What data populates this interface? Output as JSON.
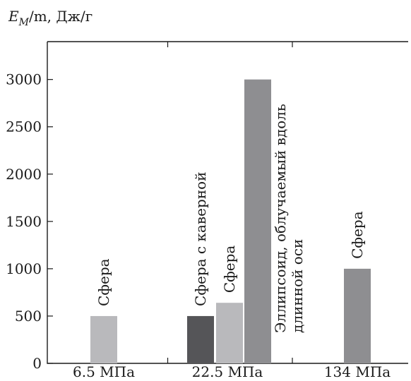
{
  "chart_data": {
    "type": "bar",
    "ylabel": "E_M/m, Дж/г",
    "ylabel_parts": {
      "e": "E",
      "sub": "M",
      "rest": "/m, Дж/г"
    },
    "ylim": [
      0,
      3400
    ],
    "yticks": [
      0,
      500,
      1000,
      1500,
      2000,
      2500,
      3000
    ],
    "ytick_labels": [
      "0",
      "500",
      "1000",
      "1500",
      "2000",
      "2500",
      "3000"
    ],
    "grid": false,
    "categories": [
      "6.5 МПа",
      "22.5 МПа",
      "134 МПа"
    ],
    "bars": [
      {
        "category": "6.5 МПа",
        "value": 500,
        "label": "Сфера",
        "label_lines": [
          "Сфера"
        ],
        "color": "#b9b9bc"
      },
      {
        "category": "22.5 МПа",
        "value": 500,
        "label": "Сфера с каверной",
        "label_lines": [
          "Сфера с каверной"
        ],
        "color": "#555558"
      },
      {
        "category": "22.5 МПа",
        "value": 640,
        "label": "Сфера",
        "label_lines": [
          "Сфера"
        ],
        "color": "#b9b9bc"
      },
      {
        "category": "22.5 МПа",
        "value": 3000,
        "label": "Эллипсоид, облучаемый вдоль длинной оси",
        "label_lines": [
          "Эллипсоид, облучаемый вдоль",
          "длинной оси"
        ],
        "color": "#8e8e91"
      },
      {
        "category": "134 МПа",
        "value": 1000,
        "label": "Сфера",
        "label_lines": [
          "Сфера"
        ],
        "color": "#8e8e91"
      }
    ]
  }
}
